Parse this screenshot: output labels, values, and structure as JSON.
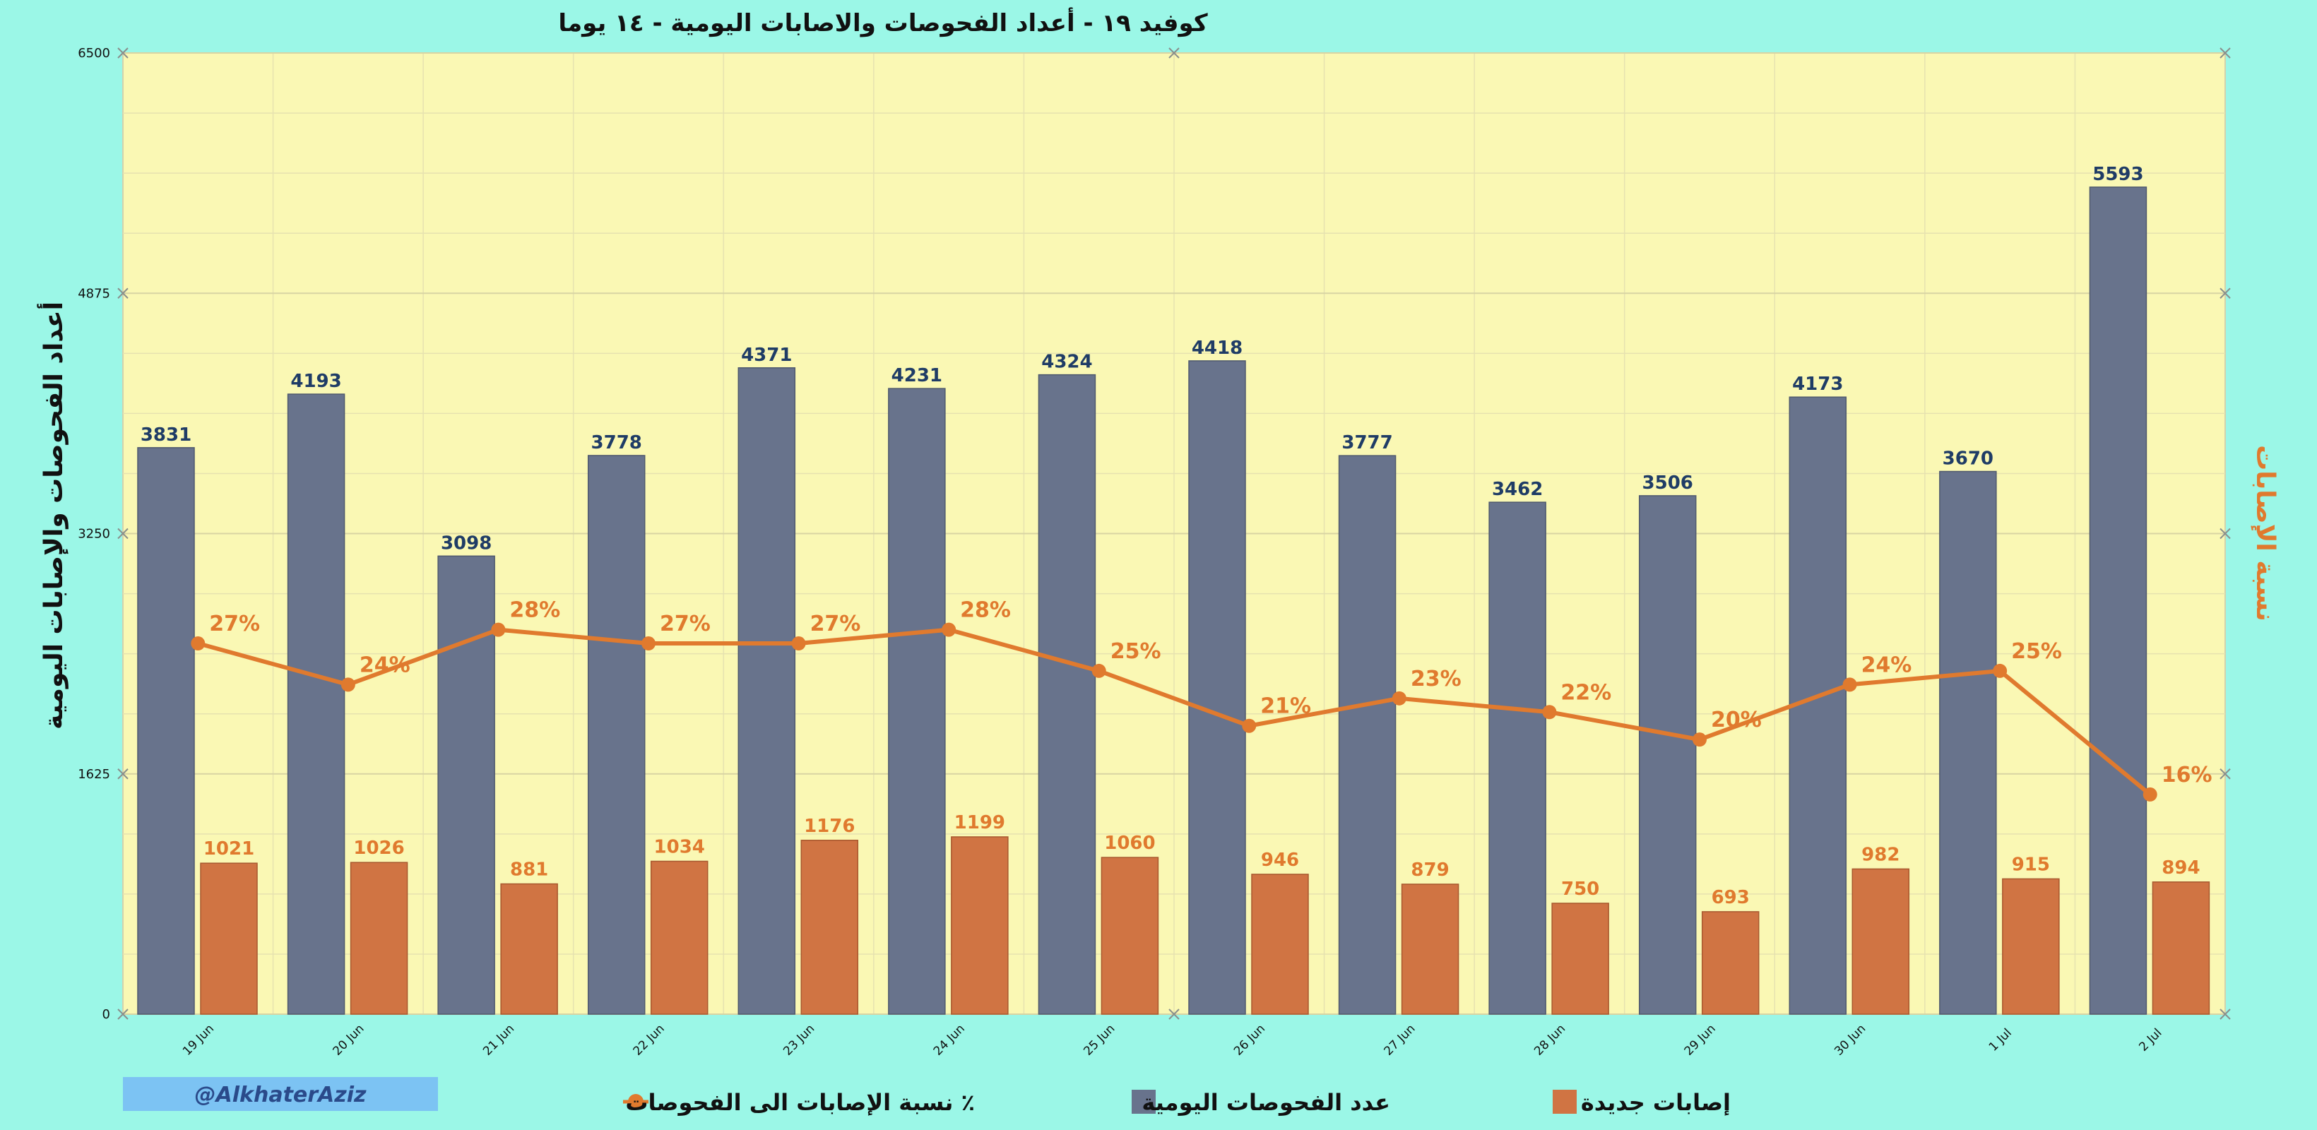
{
  "chart_data": {
    "type": "bar",
    "title": "كوفيد ١٩ - أعداد الفحوصات والاصابات اليومية - ١٤ يوما",
    "ylabel": "أعداد الفحوصات والإصابات اليومية",
    "y2label": "نسبة الإصابات",
    "ylim": [
      0,
      6500
    ],
    "yticks": [
      0,
      1625,
      3250,
      4875,
      6500
    ],
    "categories": [
      "19 Jun",
      "20 Jun",
      "21 Jun",
      "22 Jun",
      "23 Jun",
      "24 Jun",
      "25 Jun",
      "26 Jun",
      "27 Jun",
      "28 Jun",
      "29 Jun",
      "30 Jun",
      "1 Jul",
      "2 Jul"
    ],
    "series": [
      {
        "name": "عدد الفحوصات اليومية",
        "kind": "bar",
        "color": "#68738c",
        "values": [
          3831,
          4193,
          3098,
          3778,
          4371,
          4231,
          4324,
          4418,
          3777,
          3462,
          3506,
          4173,
          3670,
          5593
        ]
      },
      {
        "name": "إصابات جديدة",
        "kind": "bar",
        "color": "#d07443",
        "values": [
          1021,
          1026,
          881,
          1034,
          1176,
          1199,
          1060,
          946,
          879,
          750,
          693,
          982,
          915,
          894
        ]
      },
      {
        "name": "نسبة الإصابات الى الفحوصات ٪",
        "kind": "line",
        "color": "#e07a2e",
        "y2lim": [
          0,
          70
        ],
        "values": [
          27,
          24,
          28,
          27,
          27,
          28,
          25,
          21,
          23,
          22,
          20,
          24,
          25,
          16
        ],
        "labels": [
          "27%",
          "24%",
          "28%",
          "27%",
          "27%",
          "28%",
          "25%",
          "21%",
          "23%",
          "22%",
          "20%",
          "24%",
          "25%",
          "16%"
        ]
      }
    ],
    "grid": true,
    "legend": "bottom",
    "plot_bg": "#faf8b4",
    "page_bg": "#9bf7e7"
  },
  "watermark": "@AlkhaterAziz"
}
